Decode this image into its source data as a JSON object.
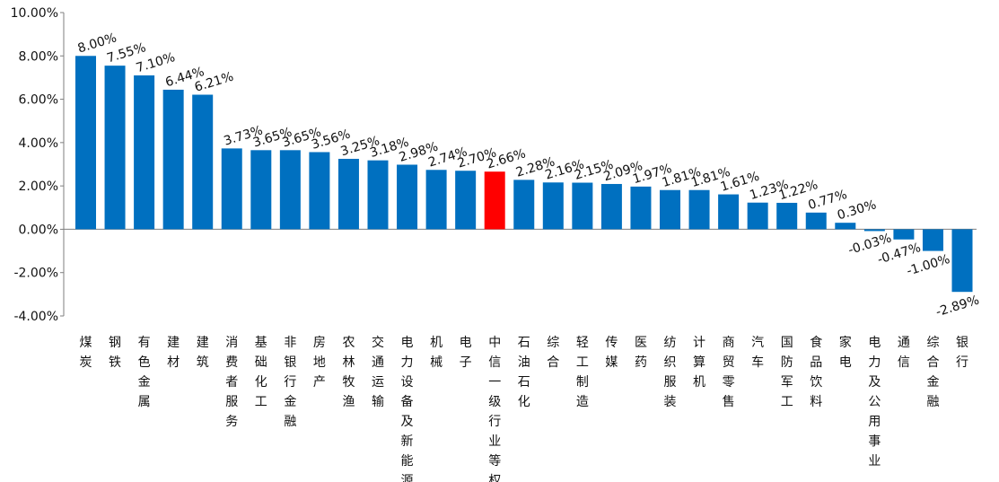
{
  "chart_data": {
    "type": "bar",
    "categories": [
      "煤炭",
      "钢铁",
      "有色金属",
      "建材",
      "建筑",
      "消费者服务",
      "基础化工",
      "非银行金融",
      "房地产",
      "农林牧渔",
      "交通运输",
      "电力设备及新能源",
      "机械",
      "电子",
      "中信一级行业等权",
      "石油石化",
      "综合",
      "轻工制造",
      "传媒",
      "医药",
      "纺织服装",
      "计算机",
      "商贸零售",
      "汽车",
      "国防军工",
      "食品饮料",
      "家电",
      "电力及公用事业",
      "通信",
      "综合金融",
      "银行"
    ],
    "values": [
      8.0,
      7.55,
      7.1,
      6.44,
      6.21,
      3.73,
      3.65,
      3.65,
      3.56,
      3.25,
      3.18,
      2.98,
      2.74,
      2.7,
      2.66,
      2.28,
      2.16,
      2.15,
      2.09,
      1.97,
      1.81,
      1.81,
      1.61,
      1.23,
      1.22,
      0.77,
      0.3,
      -0.03,
      -0.47,
      -1.0,
      -2.89
    ],
    "data_labels": [
      "8.00%",
      "7.55%",
      "7.10%",
      "6.44%",
      "6.21%",
      "3.73%",
      "3.65%",
      "3.65%",
      "3.56%",
      "3.25%",
      "3.18%",
      "2.98%",
      "2.74%",
      "2.70%",
      "2.66%",
      "2.28%",
      "2.16%",
      "2.15%",
      "2.09%",
      "1.97%",
      "1.81%",
      "1.81%",
      "1.61%",
      "1.23%",
      "1.22%",
      "0.77%",
      "0.30%",
      "-0.03%",
      "-0.47%",
      "-1.00%",
      "-2.89%"
    ],
    "highlight_index": 14,
    "yticks": [
      "10.00%",
      "8.00%",
      "6.00%",
      "4.00%",
      "2.00%",
      "0.00%",
      "-2.00%",
      "-4.00%"
    ],
    "ytick_values": [
      10,
      8,
      6,
      4,
      2,
      0,
      -2,
      -4
    ],
    "ylim": [
      -4,
      10
    ],
    "colors": {
      "bar": "#0070C0",
      "highlight": "#FF0000",
      "axis": "#7f7f7f"
    },
    "grid": false,
    "legend": "none"
  }
}
